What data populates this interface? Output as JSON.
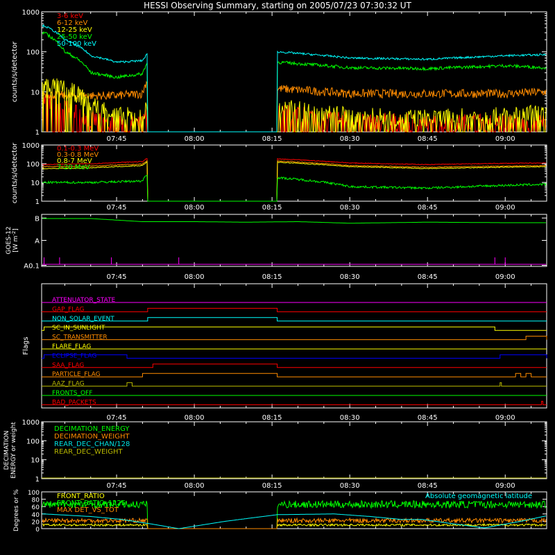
{
  "title": "HESSI Observing Summary, starting on 2005/07/23 07:30:32 UT",
  "time_axis": {
    "tick_labels": [
      "07:45",
      "08:00",
      "08:15",
      "08:30",
      "08:45",
      "09:00"
    ],
    "xlim": [
      "07:30:32",
      "09:08:00"
    ]
  },
  "colors": {
    "background": "#000000",
    "axes": "#ffffff",
    "red": "#ff0000",
    "orange": "#ff8c00",
    "yellow": "#ffff00",
    "green": "#00ff00",
    "cyan": "#00ffff",
    "magenta": "#ff00ff",
    "blue": "#0000ff",
    "olive": "#b8b800",
    "teal": "#00e0e0"
  },
  "chart_data": [
    {
      "id": "hxr",
      "type": "line",
      "ylabel": "counts/s/detector",
      "yscale": "log",
      "ylim": [
        1,
        1000
      ],
      "tick_labels": [
        "1",
        "10",
        "100",
        "1000"
      ],
      "data_gap": [
        "07:51",
        "08:16"
      ],
      "series": [
        {
          "name": "3-6 keV",
          "color": "#ff0000",
          "x": [
            "07:31",
            "07:35",
            "07:40",
            "07:45",
            "07:50",
            "07:51",
            "08:16",
            "08:30",
            "08:45",
            "09:00",
            "09:08"
          ],
          "y": [
            6,
            4,
            2,
            1.5,
            1.5,
            3,
            3,
            2,
            1.6,
            1.8,
            1.6
          ]
        },
        {
          "name": "6-12 keV",
          "color": "#ff8c00",
          "x": [
            "07:31",
            "07:35",
            "07:40",
            "07:45",
            "07:50",
            "07:51",
            "08:16",
            "08:30",
            "08:45",
            "09:00",
            "09:08"
          ],
          "y": [
            9,
            8,
            8,
            8,
            9,
            20,
            12,
            9,
            9,
            9,
            10
          ]
        },
        {
          "name": "12-25 keV",
          "color": "#ffff00",
          "x": [
            "07:31",
            "07:35",
            "07:40",
            "07:45",
            "07:50",
            "07:51",
            "08:16",
            "08:30",
            "08:45",
            "09:00",
            "09:08"
          ],
          "y": [
            15,
            12,
            5,
            2.5,
            2.5,
            4,
            4,
            2.5,
            2.2,
            2.5,
            3
          ]
        },
        {
          "name": "25-50 keV",
          "color": "#00ff00",
          "x": [
            "07:31",
            "07:35",
            "07:40",
            "07:45",
            "07:50",
            "07:51",
            "08:16",
            "08:30",
            "08:45",
            "09:00",
            "09:08"
          ],
          "y": [
            300,
            100,
            30,
            23,
            28,
            55,
            55,
            40,
            38,
            45,
            40
          ]
        },
        {
          "name": "50-100 keV",
          "color": "#00ffff",
          "x": [
            "07:31",
            "07:35",
            "07:40",
            "07:45",
            "07:50",
            "07:51",
            "08:16",
            "08:30",
            "08:45",
            "09:00",
            "09:08"
          ],
          "y": [
            450,
            200,
            80,
            55,
            60,
            90,
            100,
            70,
            65,
            80,
            85
          ]
        }
      ]
    },
    {
      "id": "gamma",
      "type": "line",
      "ylabel": "counts/s/detector",
      "yscale": "log",
      "ylim": [
        1,
        1000
      ],
      "tick_labels": [
        "1",
        "10",
        "100",
        "1000"
      ],
      "data_gap": [
        "07:51",
        "08:16"
      ],
      "series": [
        {
          "name": "0.1-0.3 MeV",
          "color": "#ff0000",
          "x": [
            "07:31",
            "07:40",
            "07:50",
            "07:51",
            "08:16",
            "08:30",
            "08:45",
            "09:00",
            "09:08"
          ],
          "y": [
            90,
            100,
            130,
            200,
            180,
            110,
            90,
            105,
            110
          ]
        },
        {
          "name": "0.3-0.8 MeV",
          "color": "#ff8c00",
          "x": [
            "07:31",
            "07:40",
            "07:50",
            "07:51",
            "08:16",
            "08:30",
            "08:45",
            "09:00",
            "09:08"
          ],
          "y": [
            70,
            75,
            95,
            150,
            140,
            80,
            65,
            75,
            80
          ]
        },
        {
          "name": "0.8-7 MeV",
          "color": "#ffff00",
          "x": [
            "07:31",
            "07:40",
            "07:50",
            "07:51",
            "08:16",
            "08:30",
            "08:45",
            "09:00",
            "09:08"
          ],
          "y": [
            55,
            60,
            80,
            130,
            120,
            70,
            55,
            65,
            70
          ]
        },
        {
          "name": "7-20 MeV",
          "color": "#00ff00",
          "x": [
            "07:31",
            "07:40",
            "07:50",
            "07:51",
            "08:16",
            "08:30",
            "08:45",
            "09:00",
            "09:08"
          ],
          "y": [
            10,
            10,
            12,
            30,
            18,
            6,
            5,
            7,
            8
          ]
        }
      ]
    },
    {
      "id": "goes",
      "type": "line",
      "ylabel": "GOES-12",
      "ylabel_units": "W m",
      "ylabel_units_sup": "-2",
      "tick_labels": [
        "A0.1",
        "A",
        "B"
      ],
      "series": [
        {
          "name": "GOES",
          "color": "#00ff00",
          "x": [
            "07:31",
            "07:40",
            "07:50",
            "08:00",
            "08:10",
            "08:20",
            "08:30",
            "08:45",
            "09:00",
            "09:08"
          ],
          "level": [
            0.92,
            0.92,
            0.86,
            0.86,
            0.85,
            0.86,
            0.83,
            0.85,
            0.84,
            0.84
          ]
        },
        {
          "name": "GOES",
          "color": "#ff00ff",
          "x": [
            "07:31",
            "09:08"
          ],
          "level": [
            0.04,
            0.04
          ]
        }
      ],
      "magenta_spikes": [
        "07:31",
        "07:34",
        "07:44",
        "07:57",
        "08:58",
        "09:00"
      ]
    },
    {
      "id": "flags",
      "type": "line",
      "ylabel": "Flags",
      "series": [
        {
          "name": "ATTENUATOR_STATE",
          "color": "#ff00ff",
          "on": []
        },
        {
          "name": "GAP_FLAG",
          "color": "#ff0000",
          "on": [
            [
              "07:51",
              "08:16"
            ]
          ]
        },
        {
          "name": "NON_SOLAR_EVENT",
          "color": "#00ffff",
          "on": [
            [
              "07:51",
              "08:16"
            ]
          ]
        },
        {
          "name": "SC_IN_SUNLIGHT",
          "color": "#ffff00",
          "on": [
            [
              "07:31",
              "08:58"
            ]
          ]
        },
        {
          "name": "SC_TRANSMITTER",
          "color": "#ff8c00",
          "on": [
            [
              "09:04",
              "09:08"
            ]
          ]
        },
        {
          "name": "FLARE_FLAG",
          "color": "#ffff00",
          "on": []
        },
        {
          "name": "ECLIPSE_FLAG",
          "color": "#0000ff",
          "on": [
            [
              "07:31",
              "07:47"
            ],
            [
              "08:59",
              "09:08"
            ]
          ]
        },
        {
          "name": "SAA_FLAG",
          "color": "#ff0000",
          "on": [
            [
              "07:52",
              "08:16"
            ]
          ]
        },
        {
          "name": "PARTICLE_FLAG",
          "color": "#ff8c00",
          "on": [
            [
              "07:50",
              "08:16"
            ],
            [
              "09:02",
              "09:03"
            ],
            [
              "09:04",
              "09:05"
            ]
          ]
        },
        {
          "name": "AAZ_FLAG",
          "color": "#b8b800",
          "on": [
            [
              "07:47",
              "07:48"
            ],
            [
              "08:59",
              "08:59"
            ]
          ]
        },
        {
          "name": "FRONTS_OFF",
          "color": "#00ff00",
          "on": []
        },
        {
          "name": "BAD_PACKETS",
          "color": "#ff0000",
          "on": [
            [
              "09:07",
              "09:07"
            ]
          ]
        }
      ]
    },
    {
      "id": "decimation",
      "type": "line",
      "ylabel": "DECIMATION",
      "ylabel2": "ENERGY or weight",
      "yscale": "log",
      "ylim": [
        1,
        1000
      ],
      "tick_labels": [
        "1",
        "10",
        "100",
        "1000"
      ],
      "series": [
        {
          "name": "DECIMATION_ENERGY",
          "color": "#00ff00"
        },
        {
          "name": "DECIMATION_WEIGHT",
          "color": "#ff8c00"
        },
        {
          "name": "REAR_DEC_CHAN/128",
          "color": "#00e0e0"
        },
        {
          "name": "REAR_DEC_WEIGHT",
          "color": "#b8b800"
        }
      ]
    },
    {
      "id": "ratio",
      "type": "line",
      "ylabel": "Degrees or %",
      "ylim": [
        0,
        100
      ],
      "tick_labels": [
        "0",
        "20",
        "40",
        "60",
        "80",
        "100"
      ],
      "annotation": "Absolute geomagnetic latitude",
      "data_gap": [
        "07:51",
        "08:16"
      ],
      "series": [
        {
          "name": "FRONT_RATIO",
          "color": "#ffff00",
          "mean": 10
        },
        {
          "name": "FRONT_RATIO_1225",
          "color": "#00ff00",
          "mean": 66
        },
        {
          "name": "MAX DET_VS_TOT",
          "color": "#ff8c00",
          "mean": 22
        },
        {
          "name": "Absolute geomagnetic latitude",
          "color": "#00ffff",
          "x": [
            "07:31",
            "07:40",
            "07:46",
            "07:52",
            "07:57",
            "08:06",
            "08:16",
            "08:27",
            "08:34",
            "08:40",
            "08:44",
            "08:49",
            "08:56",
            "09:03",
            "09:08"
          ],
          "y": [
            40,
            33,
            25,
            12,
            0,
            20,
            38,
            40,
            33,
            25,
            25,
            15,
            2,
            20,
            35
          ]
        }
      ]
    }
  ]
}
